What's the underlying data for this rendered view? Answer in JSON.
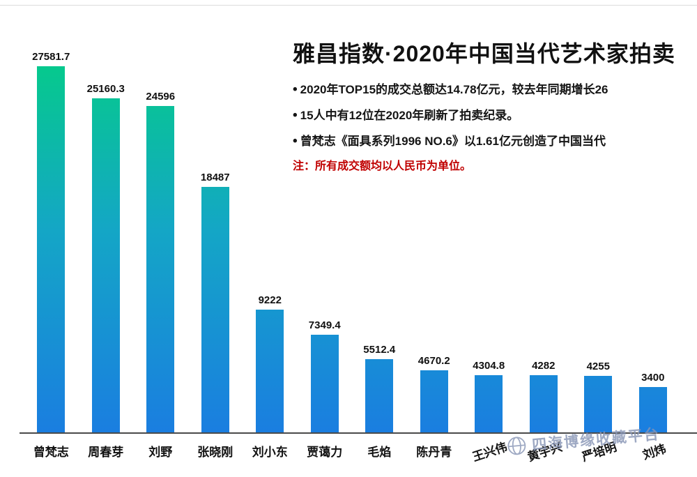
{
  "header": {
    "title": "雅昌指数·2020年中国当代艺术家拍卖",
    "bullets": [
      "2020年TOP15的成交总额达14.78亿元，较去年同期增长26",
      "15人中有12位在2020年刷新了拍卖纪录。",
      "曾梵志《面具系列1996 NO.6》以1.61亿元创造了中国当代"
    ],
    "note": "注：所有成交额均以人民币为单位。",
    "note_color": "#c00000"
  },
  "watermark": {
    "text": "四海博缘收藏平台",
    "color": "#8694b5"
  },
  "chart_data": {
    "type": "bar",
    "title": "雅昌指数·2020年中国当代艺术家拍卖",
    "categories": [
      "曾梵志",
      "周春芽",
      "刘野",
      "张晓刚",
      "刘小东",
      "贾蔼力",
      "毛焰",
      "陈丹青",
      "王兴伟",
      "黄宇兴",
      "严培明",
      "刘炜"
    ],
    "values": [
      27581.7,
      25160.3,
      24596,
      18487,
      9222,
      7349.4,
      5512.4,
      4670.2,
      4304.8,
      4282,
      4255,
      3400
    ],
    "value_labels": [
      "27581.7",
      "25160.3",
      "24596",
      "18487",
      "9222",
      "7349.4",
      "5512.4",
      "4670.2",
      "4304.8",
      "4282",
      "4255",
      "3400"
    ],
    "xlabel": "",
    "ylabel": "",
    "ylim": [
      0,
      28000
    ],
    "grid": false,
    "legend": false,
    "bar_gradient_top": "#06c98d",
    "bar_gradient_bottom": "#1a7ee0",
    "unit_note": "注：所有成交额均以人民币为单位。"
  }
}
